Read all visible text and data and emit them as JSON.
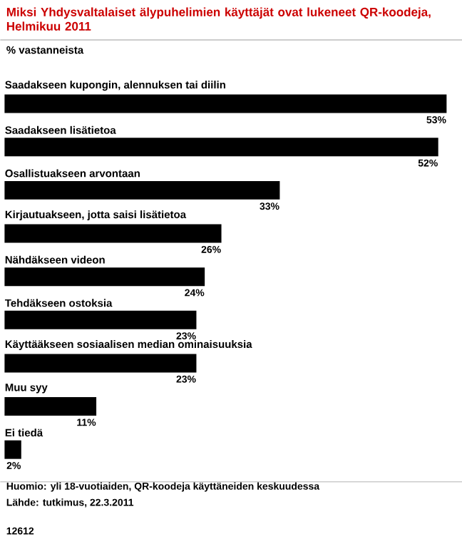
{
  "chart_data": {
    "type": "bar",
    "orientation": "horizontal",
    "title": "Miksi Yhdysvaltalaiset älypuhelimien käyttäjät ovat lukeneet QR-koodeja, Helmikuu 2011",
    "subtitle": "% vastanneista",
    "categories": [
      "Saadakseen kupongin, alennuksen tai diilin",
      "Saadakseen lisätietoa",
      "Osallistuakseen arvontaan",
      "Kirjautuakseen, jotta saisi lisätietoa",
      "Nähdäkseen videon",
      "Tehdäkseen ostoksia",
      "Käyttääkseen sosiaalisen median ominaisuuksia",
      "Muu syy",
      "Ei tiedä"
    ],
    "values": [
      53,
      52,
      33,
      26,
      24,
      23,
      23,
      11,
      2
    ],
    "value_labels": [
      "53%",
      "52%",
      "33%",
      "26%",
      "24%",
      "23%",
      "23%",
      "11%",
      "2%"
    ],
    "relative": false,
    "color": "#000000",
    "annotations": [
      "Huomio: yli 18-vuotiaiden, QR-koodeja käyttäneiden keskuudessa",
      "Lähde: tutkimus, 22.3.2011",
      "12612"
    ]
  }
}
